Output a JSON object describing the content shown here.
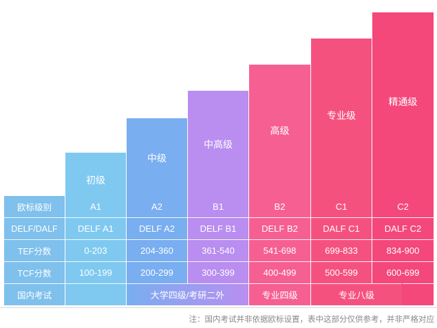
{
  "levels": [
    {
      "name": "",
      "level": "",
      "delf": "",
      "tef": "",
      "tcf": ""
    },
    {
      "name": "初级",
      "level": "A1",
      "delf": "DELF A1",
      "tef": "0-203",
      "tcf": "100-199"
    },
    {
      "name": "中级",
      "level": "A2",
      "delf": "DELF A2",
      "tef": "204-360",
      "tcf": "200-299"
    },
    {
      "name": "中高级",
      "level": "B1",
      "delf": "DELF B1",
      "tef": "361-540",
      "tcf": "300-399"
    },
    {
      "name": "高级",
      "level": "B2",
      "delf": "DELF B2",
      "tef": "541-698",
      "tcf": "400-499"
    },
    {
      "name": "专业级",
      "level": "C1",
      "delf": "DALF C1",
      "tef": "699-833",
      "tcf": "500-599"
    },
    {
      "name": "精通级",
      "level": "C2",
      "delf": "DALF C2",
      "tef": "834-900",
      "tcf": "600-699"
    }
  ],
  "row_headers": {
    "level": "欧标级别",
    "delf": "DELF/DALF",
    "tef": "TEF分数",
    "tcf": "TCF分数",
    "domestic": "国内考试"
  },
  "domestic": {
    "cet_kaoyan": "大学四级/考研二外",
    "tem4": "专业四级",
    "tem8": "专业八级"
  },
  "note": "注：国内考试并非依据欧标设置，表中这部分仅供参考，并非严格对应",
  "colors": {
    "header_col": "#7fc0ec",
    "a1": "#7fc9f0",
    "a2": "#79aef0",
    "b1": "#b98ef0",
    "b2": "#f65f92",
    "c1": "#f5517f",
    "c2": "#f4477a",
    "note_text": "#888888"
  }
}
